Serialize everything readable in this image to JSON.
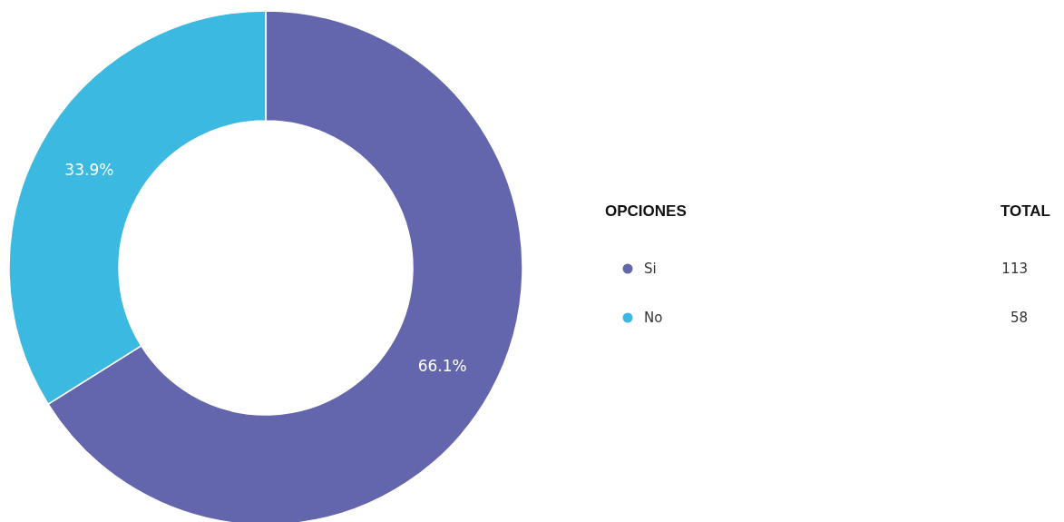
{
  "chart_data": {
    "type": "donut",
    "categories": [
      "Si",
      "No"
    ],
    "values": [
      66.1,
      33.9
    ],
    "colors": [
      "#6366ad",
      "#3bb9e0"
    ],
    "value_labels": [
      "66.1%",
      "33.9%"
    ],
    "legend": "right",
    "legend_title": "OPCIONES",
    "annotations": [
      "TOTAL",
      {
        "text": "113",
        "x": "Si"
      },
      {
        "text": "58",
        "x": "No"
      }
    ]
  }
}
